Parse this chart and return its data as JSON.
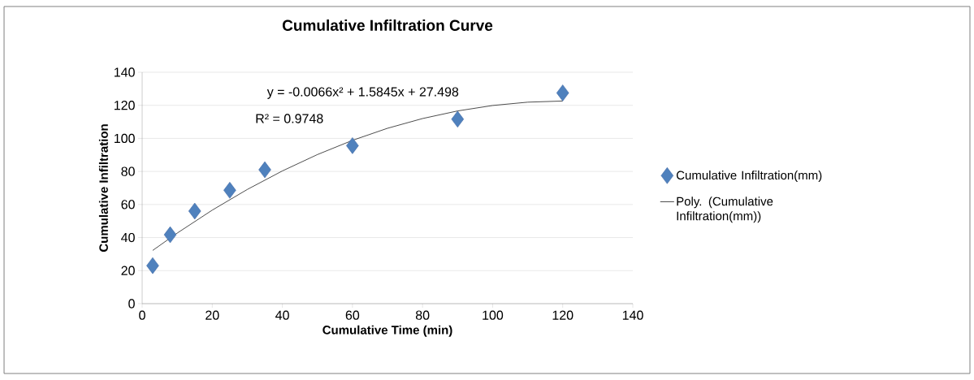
{
  "chart_data": {
    "type": "scatter",
    "title": "Cumulative Infiltration Curve",
    "xlabel": "Cumulative Time (min)",
    "ylabel": "Cumulative Infiltration",
    "xlim": [
      0,
      140
    ],
    "xticks": [
      0,
      20,
      40,
      60,
      80,
      100,
      120,
      140
    ],
    "ylim": [
      0,
      140
    ],
    "yticks": [
      0,
      20,
      40,
      60,
      80,
      100,
      120,
      140
    ],
    "grid": "y",
    "legend": "right",
    "annotations": [
      "y = -0.0066x² + 1.5845x + 27.498",
      "R² = 0.9748"
    ],
    "series": [
      {
        "name": "Cumulative Infiltration(mm)",
        "color": "#4f81bd",
        "marker": "diamond",
        "x": [
          3,
          8,
          15,
          25,
          35,
          60,
          90,
          120
        ],
        "values": [
          23,
          41.7,
          56,
          68.6,
          81,
          95.6,
          111.6,
          127.5
        ]
      },
      {
        "type": "line",
        "name": "Poly. (Cumulative Infiltration(mm))",
        "color": "#000000",
        "marker": "none",
        "line_style": "solid",
        "x": [
          3,
          10,
          20,
          30,
          40,
          50,
          60,
          70,
          80,
          90,
          100,
          110,
          120
        ],
        "values": [
          32.2,
          42.7,
          56.6,
          69.1,
          80.3,
          90.2,
          98.8,
          106.1,
          112,
          116.6,
          119.9,
          121.9,
          122.6
        ]
      }
    ]
  }
}
